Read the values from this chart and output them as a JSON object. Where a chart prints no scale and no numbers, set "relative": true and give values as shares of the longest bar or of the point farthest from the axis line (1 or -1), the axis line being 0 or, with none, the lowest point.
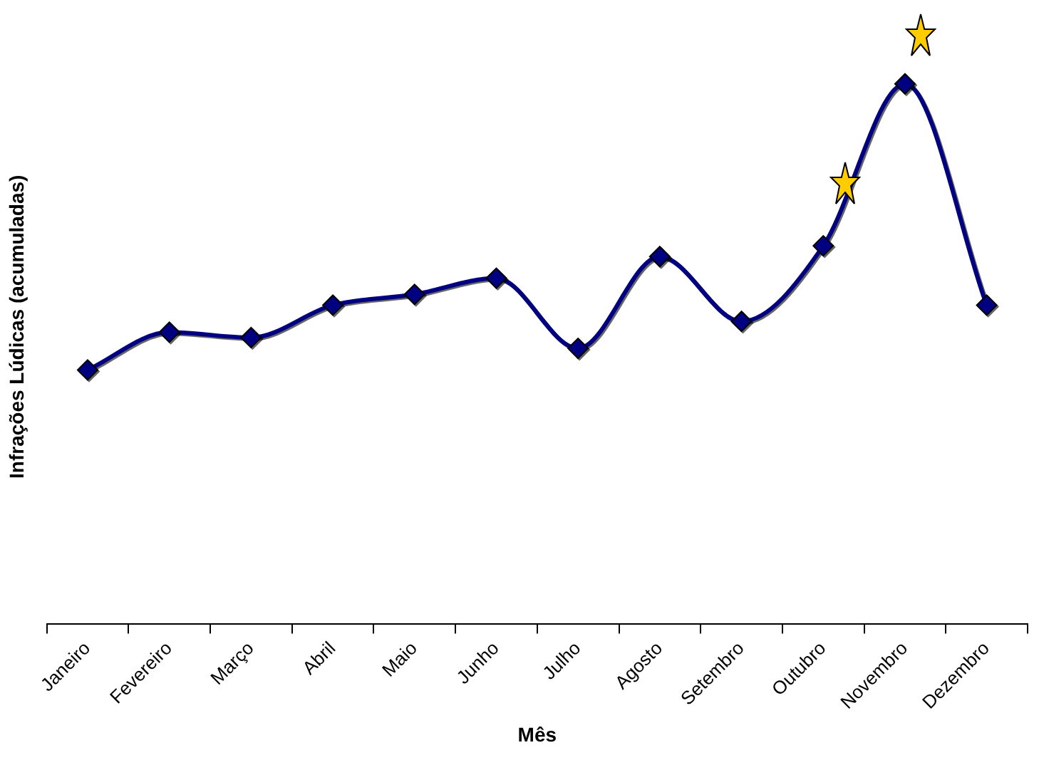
{
  "chart_data": {
    "type": "line",
    "relative": true,
    "xlabel": "Mês",
    "ylabel": "Infrações Lúdicas (acumuladas)",
    "categories": [
      "Janeiro",
      "Fevereiro",
      "Março",
      "Abril",
      "Maio",
      "Junho",
      "Julho",
      "Agosto",
      "Setembro",
      "Outubro",
      "Novembro",
      "Dezembro"
    ],
    "series": [
      {
        "color": "#000080",
        "values": [
          0.47,
          0.54,
          0.53,
          0.59,
          0.61,
          0.64,
          0.51,
          0.68,
          0.56,
          0.7,
          1,
          0.59
        ]
      }
    ],
    "marker": "diamond",
    "line_style": "solid",
    "legend": false,
    "grid": false
  }
}
